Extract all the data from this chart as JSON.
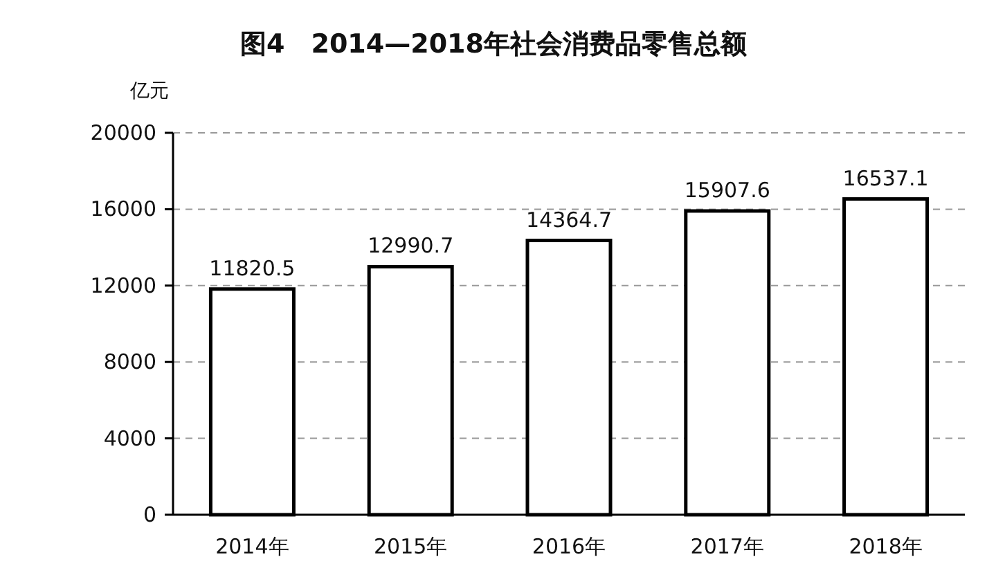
{
  "chart_data": {
    "type": "bar",
    "title": "图4　2014—2018年社会消费品零售总额",
    "ylabel": "亿元",
    "categories": [
      "2014年",
      "2015年",
      "2016年",
      "2017年",
      "2018年"
    ],
    "values": [
      11820.5,
      12990.7,
      14364.7,
      15907.6,
      16537.1
    ],
    "color": "#ffffff",
    "ylim": [
      0,
      20000
    ],
    "yticks": [
      0,
      4000,
      8000,
      12000,
      16000,
      20000
    ],
    "grid": "y",
    "line_style": "dashed",
    "data_labels": true
  }
}
